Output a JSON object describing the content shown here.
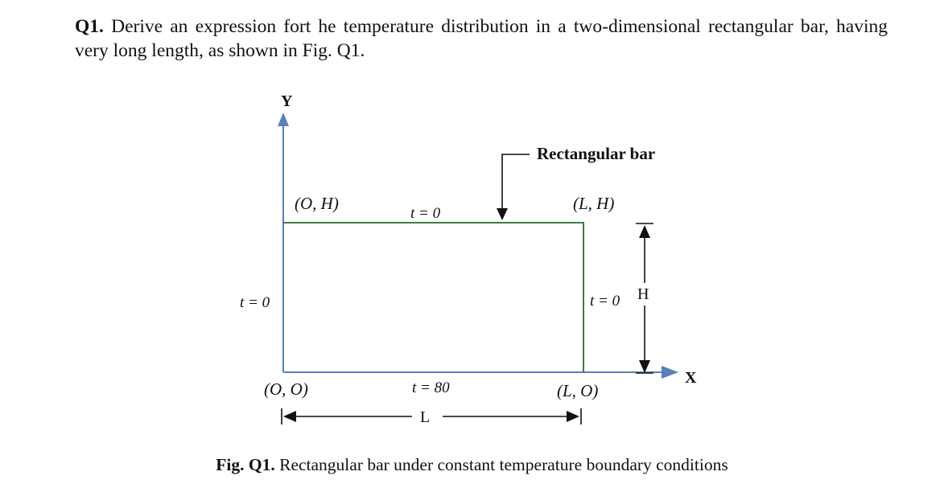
{
  "question": {
    "number": "Q1.",
    "text": " Derive an expression fort he temperature distribution in a two-dimensional rectangular bar, having very long length, as shown in Fig. Q1."
  },
  "figure": {
    "y_axis_label": "Y",
    "x_axis_label": "X",
    "bar_label": "Rectangular bar",
    "corner_top_left": "(O, H)",
    "corner_top_right": "(L, H)",
    "corner_bottom_left": "(O, O)",
    "corner_bottom_right": "(L, O)",
    "bc_top": "t = 0",
    "bc_left": "t = 0",
    "bc_right": "t = 0",
    "bc_bottom": "t = 80",
    "dim_length": "L",
    "dim_height": "H"
  },
  "caption": {
    "number": "Fig. Q1.",
    "text": " Rectangular bar under constant temperature boundary conditions"
  },
  "colors": {
    "axis": "#5b7fb8",
    "rect": "#3f7a45",
    "ink": "#111111"
  }
}
